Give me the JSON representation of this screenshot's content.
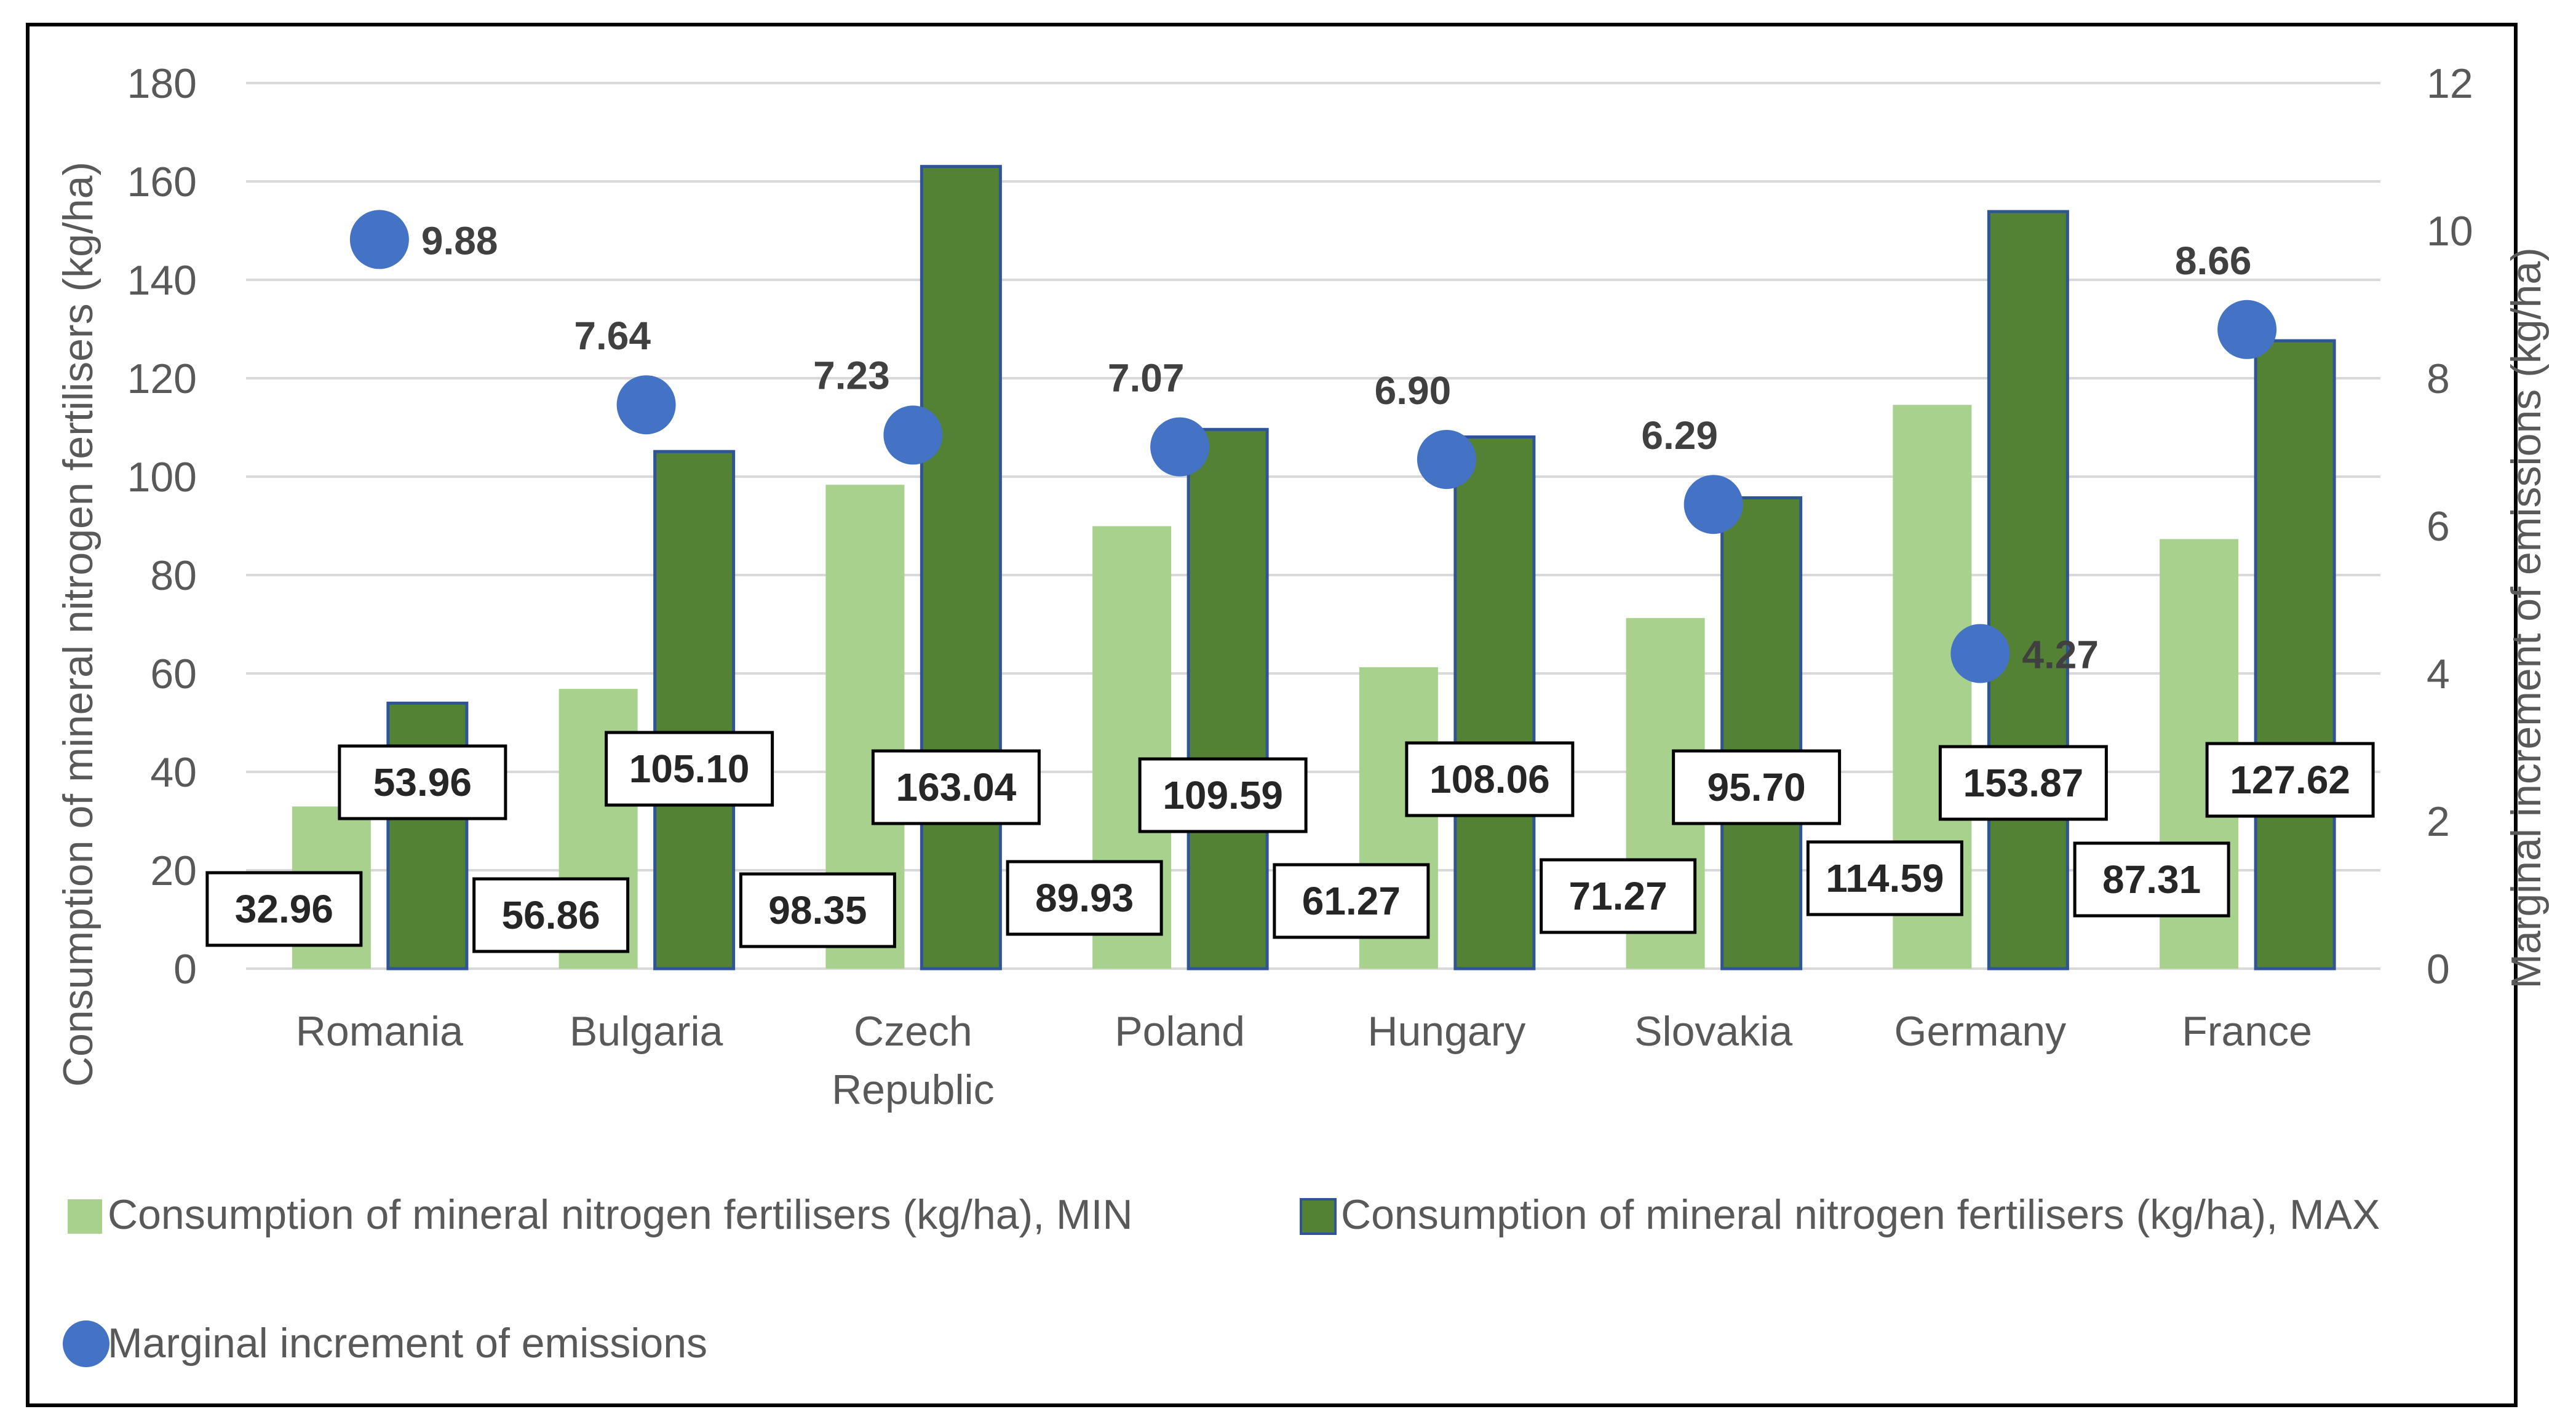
{
  "colors": {
    "min_bar": "#a9d18e",
    "max_bar": "#548235",
    "max_bar_stroke": "#2f5597",
    "marker": "#4472c4",
    "grid": "#d9d9d9",
    "frame": "#000000",
    "text": "#595959"
  },
  "chart_data": {
    "type": "bar",
    "title": "",
    "categories": [
      "Romania",
      "Bulgaria",
      "Czech Republic",
      "Poland",
      "Hungary",
      "Slovakia",
      "Germany",
      "France"
    ],
    "category_lines": [
      [
        "Romania"
      ],
      [
        "Bulgaria"
      ],
      [
        "Czech",
        "Republic"
      ],
      [
        "Poland"
      ],
      [
        "Hungary"
      ],
      [
        "Slovakia"
      ],
      [
        "Germany"
      ],
      [
        "France"
      ]
    ],
    "series": [
      {
        "name": "Consumption of mineral nitrogen fertilisers (kg/ha), MIN",
        "type": "bar",
        "axis": "left",
        "values": [
          32.96,
          56.86,
          98.35,
          89.93,
          61.27,
          71.27,
          114.59,
          87.31
        ],
        "labels": [
          "32.96",
          "56.86",
          "98.35",
          "89.93",
          "61.27",
          "71.27",
          "114.59",
          "87.31"
        ]
      },
      {
        "name": "Consumption of mineral nitrogen fertilisers (kg/ha), MAX",
        "type": "bar",
        "axis": "left",
        "values": [
          53.96,
          105.1,
          163.04,
          109.59,
          108.06,
          95.7,
          153.87,
          127.62
        ],
        "labels": [
          "53.96",
          "105.10",
          "163.04",
          "109.59",
          "108.06",
          "95.70",
          "153.87",
          "127.62"
        ]
      },
      {
        "name": "Marginal increment of emissions",
        "type": "scatter",
        "axis": "right",
        "values": [
          9.88,
          7.64,
          7.23,
          7.07,
          6.9,
          6.29,
          4.27,
          8.66
        ],
        "labels": [
          "9.88",
          "7.64",
          "7.23",
          "7.07",
          "6.90",
          "6.29",
          "4.27",
          "8.66"
        ]
      }
    ],
    "ylabel": "Consumption of mineral nitrogen fertilisers (kg/ha)",
    "y2label": "Marginal increment of emissions (kg/ha)",
    "ylim": [
      0,
      180
    ],
    "y2lim": [
      0,
      12
    ],
    "yticks": [
      "0",
      "20",
      "40",
      "60",
      "80",
      "100",
      "120",
      "140",
      "160",
      "180"
    ],
    "y2ticks": [
      "0",
      "2",
      "4",
      "6",
      "8",
      "10",
      "12"
    ],
    "grid": true,
    "legend_position": "bottom-left"
  }
}
